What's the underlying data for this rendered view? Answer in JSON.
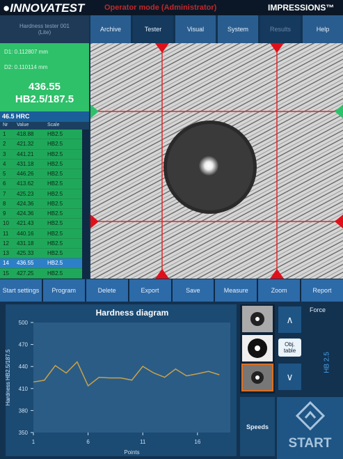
{
  "header": {
    "logo": "INNOVATEST",
    "mode": "Operator mode (Administrator)",
    "product": "IMPRESSIONS™"
  },
  "tabs": {
    "device": "Hardness tester 001 (Lite)",
    "items": [
      "Archive",
      "Tester",
      "Visual",
      "System",
      "Results",
      "Help"
    ]
  },
  "measurement": {
    "d1": "D1: 0.112807 mm",
    "d2": "D2: 0.110114 mm",
    "value": "436.55",
    "scale": "HB2.5/187.5",
    "conversion": "46.5 HRC"
  },
  "table": {
    "columns": [
      "Nr",
      "Value",
      "Scale"
    ],
    "rows": [
      [
        "1",
        "418.88",
        "HB2.5"
      ],
      [
        "2",
        "421.32",
        "HB2.5"
      ],
      [
        "3",
        "441.21",
        "HB2.5"
      ],
      [
        "4",
        "431.18",
        "HB2.5"
      ],
      [
        "5",
        "446.26",
        "HB2.5"
      ],
      [
        "6",
        "413.62",
        "HB2.5"
      ],
      [
        "7",
        "425.23",
        "HB2.5"
      ],
      [
        "8",
        "424.36",
        "HB2.5"
      ],
      [
        "9",
        "424.36",
        "HB2.5"
      ],
      [
        "10",
        "421.43",
        "HB2.5"
      ],
      [
        "11",
        "440.16",
        "HB2.5"
      ],
      [
        "12",
        "431.18",
        "HB2.5"
      ],
      [
        "13",
        "425.33",
        "HB2.5"
      ],
      [
        "14",
        "436.55",
        "HB2.5"
      ],
      [
        "15",
        "427.25",
        "HB2.5"
      ]
    ],
    "selected_row": 13
  },
  "toolbar": [
    "Start settings",
    "Program",
    "Delete",
    "Export",
    "Save",
    "Measure",
    "Zoom",
    "Report"
  ],
  "hardness_chart": {
    "type": "line",
    "title": "Hardness diagram",
    "y_label": "Hardness HB2.5/187.5",
    "x_label": "Points",
    "x": [
      1,
      2,
      3,
      4,
      5,
      6,
      7,
      8,
      9,
      10,
      11,
      12,
      13,
      14,
      15,
      16,
      17,
      18
    ],
    "series": [
      {
        "color": "#c9a24a",
        "values": [
          418.88,
          421.32,
          441.21,
          431.18,
          446.26,
          413.62,
          425.23,
          424.36,
          424.36,
          421.43,
          440.16,
          431.18,
          425.33,
          436.55,
          427.25,
          430.1,
          433.4,
          428.7
        ]
      }
    ],
    "xlim": [
      1,
      19
    ],
    "ylim": [
      350,
      500
    ],
    "xticks": [
      1,
      6,
      11,
      16
    ],
    "yticks": [
      500,
      470,
      440,
      410,
      380,
      350
    ]
  },
  "side": {
    "objective": "Obj. table",
    "speeds": "Speeds",
    "force": "Force",
    "force_value": "HB 2.5",
    "start": "START"
  }
}
